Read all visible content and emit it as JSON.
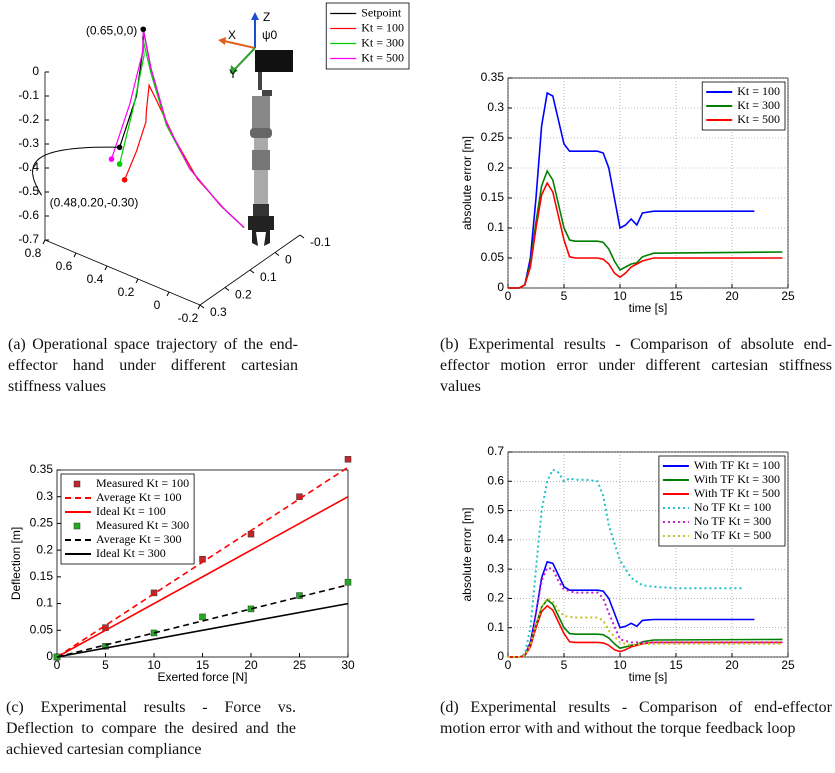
{
  "chart_data": [
    {
      "type": "line3d",
      "caption": "(a) Operational space trajectory of the end-effector hand under different cartesian stiffness values",
      "annotations": [
        "(0.65,0,0)",
        "(0.48,0.20,-0.30)"
      ],
      "frame_labels": [
        "Z",
        "X",
        "Y",
        "ψ0"
      ],
      "xlim": [
        -0.2,
        0.8
      ],
      "xticks": [
        0.8,
        0.6,
        0.4,
        0.2,
        0,
        -0.2
      ],
      "ylim": [
        -0.1,
        0.3
      ],
      "yticks": [
        -0.1,
        0,
        0.1,
        0.2,
        0.3
      ],
      "zlim": [
        -0.7,
        0
      ],
      "zticks": [
        0,
        -0.1,
        -0.2,
        -0.3,
        -0.4,
        -0.5,
        -0.6,
        -0.7
      ],
      "legend": "upper right",
      "series": [
        {
          "name": "Setpoint",
          "color": "#000000",
          "x": [
            0.48,
            0.5,
            0.6,
            0.65,
            0.6,
            0.5,
            0.35,
            0.15,
            0
          ],
          "y": [
            0.2,
            0.12,
            0.03,
            0,
            0,
            0,
            0,
            0,
            0
          ],
          "z": [
            -0.3,
            -0.15,
            -0.03,
            0,
            -0.15,
            -0.35,
            -0.5,
            -0.6,
            -0.65
          ]
        },
        {
          "name": "Kt = 100",
          "color": "#ff0000",
          "x": [
            0.48,
            0.5,
            0.52,
            0.55,
            0.58,
            0.55,
            0.45,
            0.3,
            0.12,
            0
          ],
          "y": [
            0.18,
            0.12,
            0.07,
            0.05,
            0.02,
            0.01,
            0,
            0,
            0,
            0
          ],
          "z": [
            -0.45,
            -0.38,
            -0.3,
            -0.28,
            -0.2,
            -0.26,
            -0.4,
            -0.53,
            -0.61,
            -0.65
          ]
        },
        {
          "name": "Kt = 300",
          "color": "#00cc00",
          "x": [
            0.48,
            0.5,
            0.58,
            0.64,
            0.6,
            0.5,
            0.35,
            0.15,
            0
          ],
          "y": [
            0.2,
            0.13,
            0.04,
            0.01,
            0,
            0,
            0,
            0,
            0
          ],
          "z": [
            -0.37,
            -0.18,
            -0.06,
            -0.02,
            -0.17,
            -0.36,
            -0.5,
            -0.6,
            -0.65
          ]
        },
        {
          "name": "Kt = 500",
          "color": "#ff00ff",
          "x": [
            0.5,
            0.51,
            0.59,
            0.65,
            0.6,
            0.5,
            0.35,
            0.15,
            0
          ],
          "y": [
            0.22,
            0.14,
            0.04,
            0,
            0,
            0,
            0,
            0,
            0
          ],
          "z": [
            -0.34,
            -0.17,
            -0.05,
            -0.005,
            -0.15,
            -0.35,
            -0.5,
            -0.6,
            -0.65
          ]
        }
      ]
    },
    {
      "type": "line",
      "caption": "(b) Experimental results - Comparison of absolute end-effector motion error under different cartesian stiffness values",
      "xlabel": "time [s]",
      "ylabel": "absolute error [m]",
      "xlim": [
        0,
        25
      ],
      "xticks": [
        0,
        5,
        10,
        15,
        20,
        25
      ],
      "ylim": [
        0,
        0.35
      ],
      "yticks": [
        0,
        0.05,
        0.1,
        0.15,
        0.2,
        0.25,
        0.3,
        0.35
      ],
      "grid": true,
      "legend": "upper right",
      "series": [
        {
          "name": "Kt = 100",
          "color": "#0000ff",
          "style": "solid",
          "x": [
            0,
            1,
            1.5,
            2,
            2.5,
            3,
            3.5,
            4,
            4.5,
            5,
            5.5,
            6,
            8,
            8.5,
            9,
            9.5,
            10,
            10.5,
            11,
            11.5,
            12,
            13,
            22
          ],
          "values": [
            0,
            0,
            0.005,
            0.05,
            0.15,
            0.27,
            0.325,
            0.32,
            0.28,
            0.24,
            0.228,
            0.228,
            0.228,
            0.225,
            0.2,
            0.15,
            0.1,
            0.105,
            0.115,
            0.105,
            0.125,
            0.128,
            0.128
          ]
        },
        {
          "name": "Kt = 300",
          "color": "#008000",
          "style": "solid",
          "x": [
            0,
            1,
            1.5,
            2,
            2.5,
            3,
            3.5,
            4,
            4.5,
            5,
            5.5,
            6,
            8,
            8.5,
            9,
            9.5,
            10,
            10.5,
            11,
            11.5,
            12,
            13,
            24.5
          ],
          "values": [
            0,
            0,
            0.005,
            0.04,
            0.11,
            0.17,
            0.195,
            0.18,
            0.14,
            0.1,
            0.08,
            0.078,
            0.078,
            0.076,
            0.065,
            0.045,
            0.03,
            0.035,
            0.04,
            0.042,
            0.052,
            0.058,
            0.06
          ]
        },
        {
          "name": "Kt = 500",
          "color": "#ff0000",
          "style": "solid",
          "x": [
            0,
            1,
            1.5,
            2,
            2.5,
            3,
            3.5,
            4,
            4.5,
            5,
            5.5,
            6,
            8,
            8.5,
            9,
            9.5,
            10,
            10.5,
            11,
            11.5,
            12,
            13,
            24.5
          ],
          "values": [
            0,
            0,
            0.005,
            0.035,
            0.1,
            0.155,
            0.175,
            0.16,
            0.12,
            0.08,
            0.052,
            0.05,
            0.05,
            0.048,
            0.04,
            0.025,
            0.018,
            0.025,
            0.035,
            0.04,
            0.045,
            0.05,
            0.05
          ]
        }
      ]
    },
    {
      "type": "line",
      "caption": "(c) Experimental results - Force vs. Deflection to compare the desired and the achieved cartesian compliance",
      "xlabel": "Exerted force [N]",
      "ylabel": "Deflection [m]",
      "xlim": [
        0,
        30
      ],
      "xticks": [
        0,
        5,
        10,
        15,
        20,
        25,
        30
      ],
      "ylim": [
        0,
        0.35
      ],
      "yticks": [
        0,
        0.05,
        0.1,
        0.15,
        0.2,
        0.25,
        0.3,
        0.35
      ],
      "grid": false,
      "legend": "upper left",
      "series": [
        {
          "name": "Measured Kt = 100",
          "color": "#c0282d",
          "style": "markers",
          "x": [
            0,
            5,
            10,
            15,
            20,
            25,
            30
          ],
          "values": [
            0,
            0.055,
            0.12,
            0.183,
            0.23,
            0.3,
            0.37
          ]
        },
        {
          "name": "Average Kt = 100",
          "color": "#ff0000",
          "style": "dashed",
          "x": [
            0,
            30
          ],
          "values": [
            0,
            0.355
          ]
        },
        {
          "name": "Ideal Kt = 100",
          "color": "#ff0000",
          "style": "solid",
          "x": [
            0,
            30
          ],
          "values": [
            0,
            0.3
          ]
        },
        {
          "name": "Measured Kt = 300",
          "color": "#22aa22",
          "style": "markers",
          "x": [
            0,
            5,
            10,
            15,
            20,
            25,
            30
          ],
          "values": [
            0,
            0.02,
            0.045,
            0.075,
            0.09,
            0.115,
            0.14
          ]
        },
        {
          "name": "Average Kt = 300",
          "color": "#000000",
          "style": "dashed",
          "x": [
            0,
            30
          ],
          "values": [
            0,
            0.135
          ]
        },
        {
          "name": "Ideal Kt = 300",
          "color": "#000000",
          "style": "solid",
          "x": [
            0,
            30
          ],
          "values": [
            0,
            0.1
          ]
        }
      ]
    },
    {
      "type": "line",
      "caption": "(d) Experimental results - Comparison of end-effector motion error with and without the torque feedback loop",
      "xlabel": "time [s]",
      "ylabel": "absolute error [m]",
      "xlim": [
        0,
        25
      ],
      "xticks": [
        0,
        5,
        10,
        15,
        20,
        25
      ],
      "ylim": [
        0,
        0.7
      ],
      "yticks": [
        0,
        0.1,
        0.2,
        0.3,
        0.4,
        0.5,
        0.6,
        0.7
      ],
      "grid": true,
      "legend": "upper right",
      "series": [
        {
          "name": "With TF Kt = 100",
          "color": "#0000ff",
          "style": "solid",
          "x": [
            0,
            1,
            1.5,
            2,
            2.5,
            3,
            3.5,
            4,
            4.5,
            5,
            5.5,
            6,
            8,
            8.5,
            9,
            9.5,
            10,
            10.5,
            11,
            11.5,
            12,
            13,
            22
          ],
          "values": [
            0,
            0,
            0.005,
            0.05,
            0.15,
            0.27,
            0.325,
            0.32,
            0.28,
            0.24,
            0.228,
            0.228,
            0.228,
            0.225,
            0.2,
            0.15,
            0.1,
            0.105,
            0.115,
            0.105,
            0.125,
            0.128,
            0.128
          ]
        },
        {
          "name": "With TF Kt = 300",
          "color": "#008000",
          "style": "solid",
          "x": [
            0,
            1,
            1.5,
            2,
            2.5,
            3,
            3.5,
            4,
            4.5,
            5,
            5.5,
            6,
            8,
            8.5,
            9,
            9.5,
            10,
            10.5,
            11,
            11.5,
            12,
            13,
            24.5
          ],
          "values": [
            0,
            0,
            0.005,
            0.04,
            0.11,
            0.17,
            0.195,
            0.18,
            0.14,
            0.1,
            0.08,
            0.078,
            0.078,
            0.076,
            0.065,
            0.045,
            0.03,
            0.035,
            0.04,
            0.042,
            0.052,
            0.058,
            0.06
          ]
        },
        {
          "name": "With TF Kt = 500",
          "color": "#ff0000",
          "style": "solid",
          "x": [
            0,
            1,
            1.5,
            2,
            2.5,
            3,
            3.5,
            4,
            4.5,
            5,
            5.5,
            6,
            8,
            8.5,
            9,
            9.5,
            10,
            10.5,
            11,
            11.5,
            12,
            13,
            24.5
          ],
          "values": [
            0,
            0,
            0.005,
            0.035,
            0.1,
            0.155,
            0.175,
            0.16,
            0.12,
            0.08,
            0.052,
            0.05,
            0.05,
            0.048,
            0.04,
            0.025,
            0.018,
            0.025,
            0.035,
            0.04,
            0.045,
            0.05,
            0.05
          ]
        },
        {
          "name": "No TF Kt = 100",
          "color": "#20c0c8",
          "style": "dotted",
          "x": [
            0,
            1,
            1.5,
            2,
            2.5,
            3,
            3.5,
            4,
            4.5,
            5,
            5.5,
            6,
            7,
            8,
            8.5,
            9,
            10,
            11,
            12,
            13,
            15,
            21
          ],
          "values": [
            0,
            0,
            0.01,
            0.1,
            0.3,
            0.5,
            0.6,
            0.64,
            0.63,
            0.6,
            0.61,
            0.605,
            0.605,
            0.6,
            0.55,
            0.45,
            0.33,
            0.27,
            0.245,
            0.24,
            0.235,
            0.235
          ]
        },
        {
          "name": "No TF Kt = 300",
          "color": "#c020c8",
          "style": "dotted",
          "x": [
            0,
            1,
            1.5,
            2,
            2.5,
            3,
            3.5,
            4,
            4.5,
            5,
            6,
            8,
            8.5,
            9,
            10,
            11,
            12,
            24.5
          ],
          "values": [
            0,
            0,
            0.005,
            0.05,
            0.15,
            0.26,
            0.305,
            0.3,
            0.26,
            0.23,
            0.22,
            0.22,
            0.2,
            0.15,
            0.06,
            0.05,
            0.05,
            0.05
          ]
        },
        {
          "name": "No TF Kt = 500",
          "color": "#c8c020",
          "style": "dotted",
          "x": [
            0,
            1,
            1.5,
            2,
            2.5,
            3,
            3.5,
            4,
            4.5,
            5,
            6,
            8,
            8.5,
            9,
            10,
            11,
            12,
            24.5
          ],
          "values": [
            0,
            0,
            0.005,
            0.04,
            0.11,
            0.17,
            0.2,
            0.19,
            0.16,
            0.14,
            0.135,
            0.135,
            0.125,
            0.09,
            0.05,
            0.04,
            0.045,
            0.045
          ]
        }
      ]
    }
  ]
}
